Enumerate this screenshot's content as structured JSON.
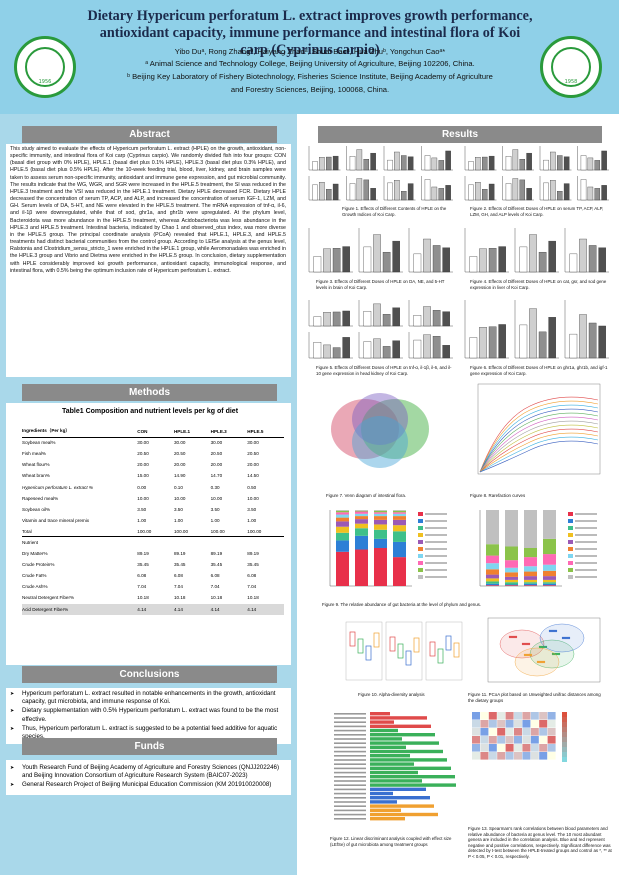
{
  "header": {
    "title": "Dietary Hypericum perforatum L. extract improves growth performance, antioxidant capacity, immune performance and intestinal flora of Koi carp (Cyprinus carpio)",
    "authors": "Yibo Duᵃ, Rong Zhangᵇ, Haiyang Zhaoᵃ, Shuai Baoᵃ, Hua Zhuᵇ, Yongchun Caoᵃ*",
    "affiliation_a": "ᵃ Animal Science and Technology College, Beijing University of Agriculture, Beijing 102206, China.",
    "affiliation_b": "ᵇ Beijing Key Laboratory of Fishery Biotechnology, Fisheries Science Institute, Beijing Academy of Agriculture",
    "affiliation_b2": "and Forestry Sciences, Beijing, 100068, China.",
    "logo_left_year": "1956",
    "logo_right_year": "1958"
  },
  "sections": {
    "abstract": "Abstract",
    "methods": "Methods",
    "conclusions": "Conclusions",
    "funds": "Funds",
    "results": "Results"
  },
  "abstract": "This study aimed to evaluate the effects of Hypericum perforatum L. extract (HPLE) on the growth, antioxidant, non-specific immunity, and intestinal flora of Koi carp (Cyprinus carpio). We randomly divided fish into four groups: CON (basal diet group with 0% HPLE), HPLE.1 (basal diet plus 0.1% HPLE), HPLE.3 (basal diet plus 0.3% HPLE), and HPLE.5 (basal diet plus 0.5% HPLE). After the 10-week feeding trial, blood, liver, kidney, and brain samples were taken to assess serum non-specific immunity, antioxidant and immune gene expression, and gut microbial community. The results indicate that the WG, WGR, and SGR were increased in the HPLE.5 treatment, the SI was reduced in the HPLE.3 treatment and the VSI was reduced in the HPLE.1 treatment. Dietary HPLE decreased FCR. Dietary HPLE decreased the concentration of serum TP, ACP, and ALP, and increased the concentration of serum IGF-1, LZM, and GH. Serum levels of DA, 5-HT, and NE were elevated in the HPLE.5 treatment. The mRNA expression of tnf-α, il-6, and il-1β were downregulated, while that of sod, ghr1a, and ghr1b were upregulated. At the phylum level, Bacteroidota was more abundance in the HPLE.5 treatment, whereas Acidobacteriota was less abundance in the HPLE.3 and HPLE.5 treatment. Intestinal bacteria, indicated by Chao 1 and observed_otus index, was more diverse in the HPLE.5 group. The principal coordinate analysis (PCoA) revealed that HPLE.1, HPLE.3, and HPLE.5 treatments had distinct bacterial communities from the control group. According to LEfSe analysis at the genus level, Ralstonia and Clostridium_sensu_stricto_1 were enriched in the HPLE.1 group, while Aeromonadales was enriched in the HPLE.3 group and Vibrio and Dietma were enriched in the HPLE.5 group. In conclusion, dietary supplementation with HPLE considerably improved koi growth performance, antioxidant capacity, immunological response, and intestinal flora, with 0.5% being the optimum inclusion rate of Hypericum perforatum L. extract.",
  "table": {
    "title": "Table1 Composition and nutrient levels per kg of diet",
    "columns": [
      "Ingredients（Per kg）",
      "CON",
      "HPLE.1",
      "HPLE.3",
      "HPLE.5"
    ],
    "rows": [
      [
        "Soybean meal%",
        "30.00",
        "30.00",
        "30.00",
        "30.00"
      ],
      [
        "Fish meal%",
        "20.50",
        "20.50",
        "20.50",
        "20.50"
      ],
      [
        "Wheat flour%",
        "20.00",
        "20.00",
        "20.00",
        "20.00"
      ],
      [
        "Wheat bran%",
        "15.00",
        "14.90",
        "14.70",
        "14.50"
      ],
      [
        "Hypericum perforatum L. extract %",
        "0.00",
        "0.10",
        "0.30",
        "0.50"
      ],
      [
        "Rapeseed meal%",
        "10.00",
        "10.00",
        "10.00",
        "10.00"
      ],
      [
        "Soybean oil%",
        "3.50",
        "3.50",
        "3.50",
        "3.50"
      ],
      [
        "Vitamin and trace mineral premix",
        "1.00",
        "1.00",
        "1.00",
        "1.00"
      ],
      [
        "Total",
        "100.00",
        "100.00",
        "100.00",
        "100.00"
      ]
    ],
    "nutrient_label": "Nutrient",
    "nutrient_rows": [
      [
        "Dry Matter%",
        "89.19",
        "89.19",
        "89.19",
        "89.19"
      ],
      [
        "Crude Protein%",
        "35.45",
        "35.45",
        "35.45",
        "35.45"
      ],
      [
        "Crude Fat%",
        "6.08",
        "6.08",
        "6.08",
        "6.08"
      ],
      [
        "Crude Ash%",
        "7.04",
        "7.04",
        "7.04",
        "7.04"
      ],
      [
        "Neutral Detergent Fiber%",
        "10.18",
        "10.18",
        "10.18",
        "10.18"
      ],
      [
        "Acid Detergent Fiber%",
        "4.14",
        "4.14",
        "4.14",
        "4.14"
      ]
    ]
  },
  "conclusions": [
    "Hypericum perforatum L. extract resulted in notable enhancements in the growth, antioxidant capacity, gut microbiota, and immune response of Koi.",
    "Dietary supplementation with 0.5% Hypericum perforatum L. extract was found to be the most effective.",
    "Thus, Hypericum perforatum L. extract is suggested to be a potential feed additive for aquatic species."
  ],
  "funds": [
    "Youth Research Fund of Beijing Academy of Agriculture and Forestry Sciences (QNJJ202246) and Beijing Innovation Consortium of Agriculture Research System (BAIC07-2023)",
    "General Research Project of Beijing Municipal Education Commission (KM 201910020008)"
  ],
  "figures": {
    "fig1": "Figure 1. Effects of Different Contents of HPLE on the Growth Indices of Koi Carp.",
    "fig2": "Figure 2. Effects of Different Doses of HPLE on serum TP, ACP, ALP, LZM, GH, and ALP levels of Koi Carp.",
    "fig3": "Figure 3. Effects of Different Doses of HPLE on DA, NE, and 5-HT levels in brain of Koi Carp.",
    "fig4": "Figure 4. Effects of Different Doses of HPLE on cat, gsr, and sod gene expression in liver of Koi Carp.",
    "fig5": "Figure 5. Effects of Different Doses of HPLE on tnf-α, il-1β, il-6, and il-10 gene expression in head kidney of Koi Carp.",
    "fig6": "Figure 6. Effects of Different Doses of HPLE on ghr1a, ghr1b, and igf-1 gene expression of Koi Carp.",
    "fig7": "Figure 7. Venn diagram of intestinal flora.",
    "fig8": "Figure 8. Rarefaction curves",
    "fig9": "Figure 9. The relative abundance of gut bacteria at the level of phylum and genus.",
    "fig10": "Figure 10. Alpha-diversity analysis",
    "fig11": "Figure 11. PCoA plot based on Unweighted unifrac distances among the dietary groups",
    "fig12": "Figure 12. Linear discriminant analysis coupled with effect size (LEfSe) of gut microbiota among treatment groups",
    "fig13": "Figure 13. Spearman's rank correlations between blood parameters and relative abundance of bacteria at genus level. The 10 most abundant genera are included in the correlation analysis. Blue and red represent negative and positive correlations, respectively. Significant difference was detected by t-test between the HPLE-treated groups and control as *, ** at P < 0.05, P < 0.01, respectively."
  },
  "colors": {
    "header_bg": "#8fd0e8",
    "left_bg": "#a9d8ea",
    "section_bg": "#8a8a8a",
    "title_color": "#1c2b4c"
  }
}
